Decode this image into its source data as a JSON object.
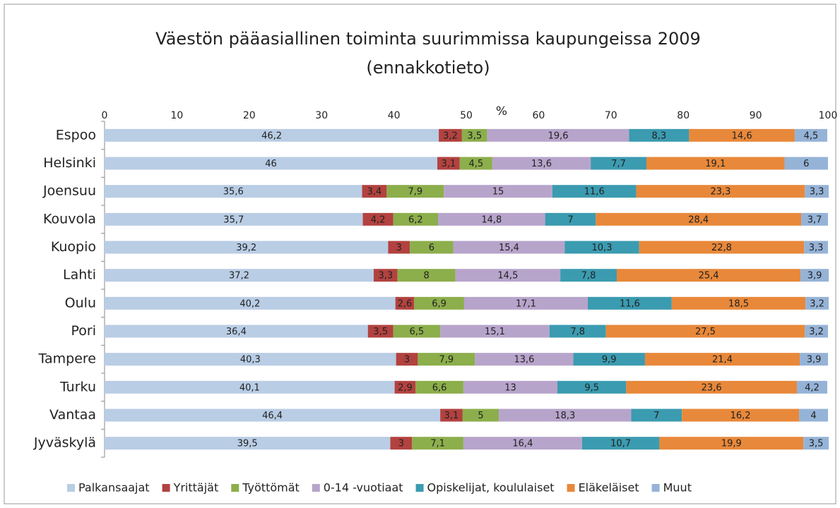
{
  "chart_data": {
    "type": "stacked_bar_horizontal",
    "title": "Väestön pääasiallinen toiminta suurimmissa kaupungeissa 2009",
    "subtitle": "(ennakkotieto)",
    "xlabel": "%",
    "categories": [
      "Espoo",
      "Helsinki",
      "Joensuu",
      "Kouvola",
      "Kuopio",
      "Lahti",
      "Oulu",
      "Pori",
      "Tampere",
      "Turku",
      "Vantaa",
      "Jyväskylä"
    ],
    "xlim": [
      0,
      100
    ],
    "xticks": [
      0,
      10,
      20,
      30,
      40,
      50,
      60,
      70,
      80,
      90,
      100
    ],
    "legend": "bottom",
    "series": [
      {
        "name": "Palkansaajat",
        "color": "#b9cde5",
        "values": [
          46.2,
          46,
          35.6,
          35.7,
          39.2,
          37.2,
          40.2,
          36.4,
          40.3,
          40.1,
          46.4,
          39.5
        ],
        "value_labels": [
          "46,2",
          "46",
          "35,6",
          "35,7",
          "39,2",
          "37,2",
          "40,2",
          "36,4",
          "40,3",
          "40,1",
          "46,4",
          "39,5"
        ]
      },
      {
        "name": "Yrittäjät",
        "color": "#b2423f",
        "values": [
          3.2,
          3.1,
          3.4,
          4.2,
          3,
          3.3,
          2.6,
          3.5,
          3,
          2.9,
          3.1,
          3
        ],
        "value_labels": [
          "3,2",
          "3,1",
          "3,4",
          "4,2",
          "3",
          "3,3",
          "2,6",
          "3,5",
          "3",
          "2,9",
          "3,1",
          "3"
        ]
      },
      {
        "name": "Työttömät",
        "color": "#8cae4b",
        "values": [
          3.5,
          4.5,
          7.9,
          6.2,
          6,
          8,
          6.9,
          6.5,
          7.9,
          6.6,
          5,
          7.1
        ],
        "value_labels": [
          "3,5",
          "4,5",
          "7,9",
          "6,2",
          "6",
          "8",
          "6,9",
          "6,5",
          "7,9",
          "6,6",
          "5",
          "7,1"
        ]
      },
      {
        "name": "0-14 -vuotiaat",
        "color": "#b7a4cb",
        "values": [
          19.6,
          13.6,
          15,
          14.8,
          15.4,
          14.5,
          17.1,
          15.1,
          13.6,
          13,
          18.3,
          16.4
        ],
        "value_labels": [
          "19,6",
          "13,6",
          "15",
          "14,8",
          "15,4",
          "14,5",
          "17,1",
          "15,1",
          "13,6",
          "13",
          "18,3",
          "16,4"
        ]
      },
      {
        "name": "Opiskelijat, koululaiset",
        "color": "#3b9bb0",
        "values": [
          8.3,
          7.7,
          11.6,
          7,
          10.3,
          7.8,
          11.6,
          7.8,
          9.9,
          9.5,
          7,
          10.7
        ],
        "value_labels": [
          "8,3",
          "7,7",
          "11,6",
          "7",
          "10,3",
          "7,8",
          "11,6",
          "7,8",
          "9,9",
          "9,5",
          "7",
          "10,7"
        ]
      },
      {
        "name": "Eläkeläiset",
        "color": "#e8883a",
        "values": [
          14.6,
          19.1,
          23.3,
          28.4,
          22.8,
          25.4,
          18.5,
          27.5,
          21.4,
          23.6,
          16.2,
          19.9
        ],
        "value_labels": [
          "14,6",
          "19,1",
          "23,3",
          "28,4",
          "22,8",
          "25,4",
          "18,5",
          "27,5",
          "21,4",
          "23,6",
          "16,2",
          "19,9"
        ]
      },
      {
        "name": "Muut",
        "color": "#95b3d7",
        "values": [
          4.5,
          6,
          3.3,
          3.7,
          3.3,
          3.9,
          3.2,
          3.2,
          3.9,
          4.2,
          4,
          3.5
        ],
        "value_labels": [
          "4,5",
          "6",
          "3,3",
          "3,7",
          "3,3",
          "3,9",
          "3,2",
          "3,2",
          "3,9",
          "4,2",
          "4",
          "3,5"
        ]
      }
    ]
  }
}
